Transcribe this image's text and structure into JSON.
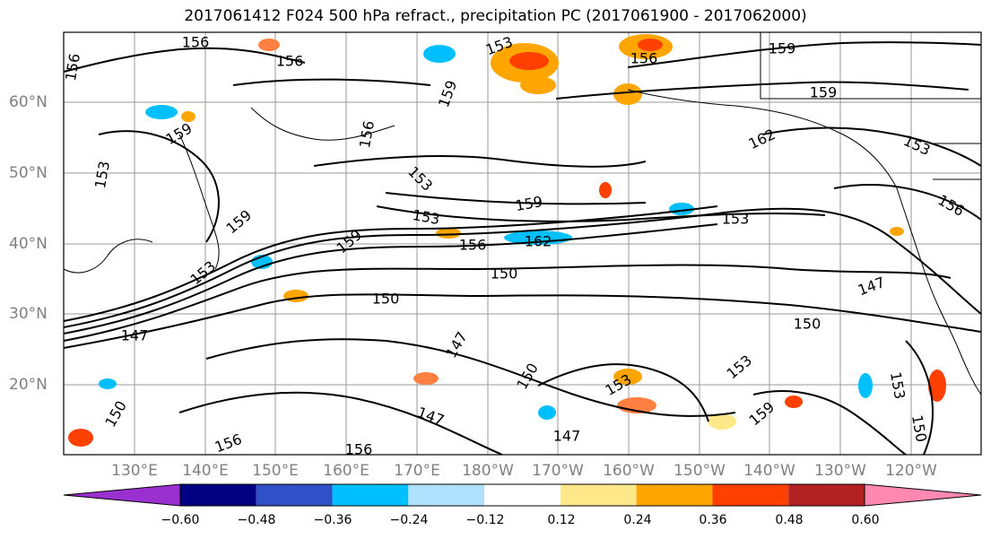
{
  "title": "2017061412 F024 500 hPa refract., precipitation PC (2017061900 - 2017062000)",
  "lat_labels": [
    "60°N",
    "50°N",
    "40°N",
    "30°N",
    "20°N"
  ],
  "lon_labels": [
    "130°E",
    "140°E",
    "150°E",
    "160°E",
    "170°E",
    "180°W",
    "170°W",
    "160°W",
    "150°W",
    "140°W",
    "130°W",
    "120°W"
  ],
  "contour_labels": [
    "156",
    "156",
    "156",
    "153",
    "156",
    "159",
    "159",
    "159",
    "162",
    "153",
    "156",
    "153",
    "159",
    "153",
    "156",
    "159",
    "153",
    "159",
    "153",
    "159",
    "156",
    "162",
    "150",
    "153",
    "150",
    "147",
    "150",
    "147",
    "147",
    "153",
    "150",
    "147",
    "147",
    "153",
    "150",
    "150",
    "159",
    "156",
    "153",
    "156"
  ],
  "colorbar": {
    "colors": [
      "#9b30d0",
      "#000080",
      "#3050c8",
      "#00bfff",
      "#b0e2ff",
      "#ffffff",
      "#ffe88a",
      "#ffa500",
      "#ff4000",
      "#b22222",
      "#ff88b0"
    ],
    "tick_labels": [
      "−0.60",
      "−0.48",
      "−0.36",
      "−0.24",
      "−0.12",
      "0.12",
      "0.24",
      "0.36",
      "0.48",
      "0.60"
    ]
  }
}
